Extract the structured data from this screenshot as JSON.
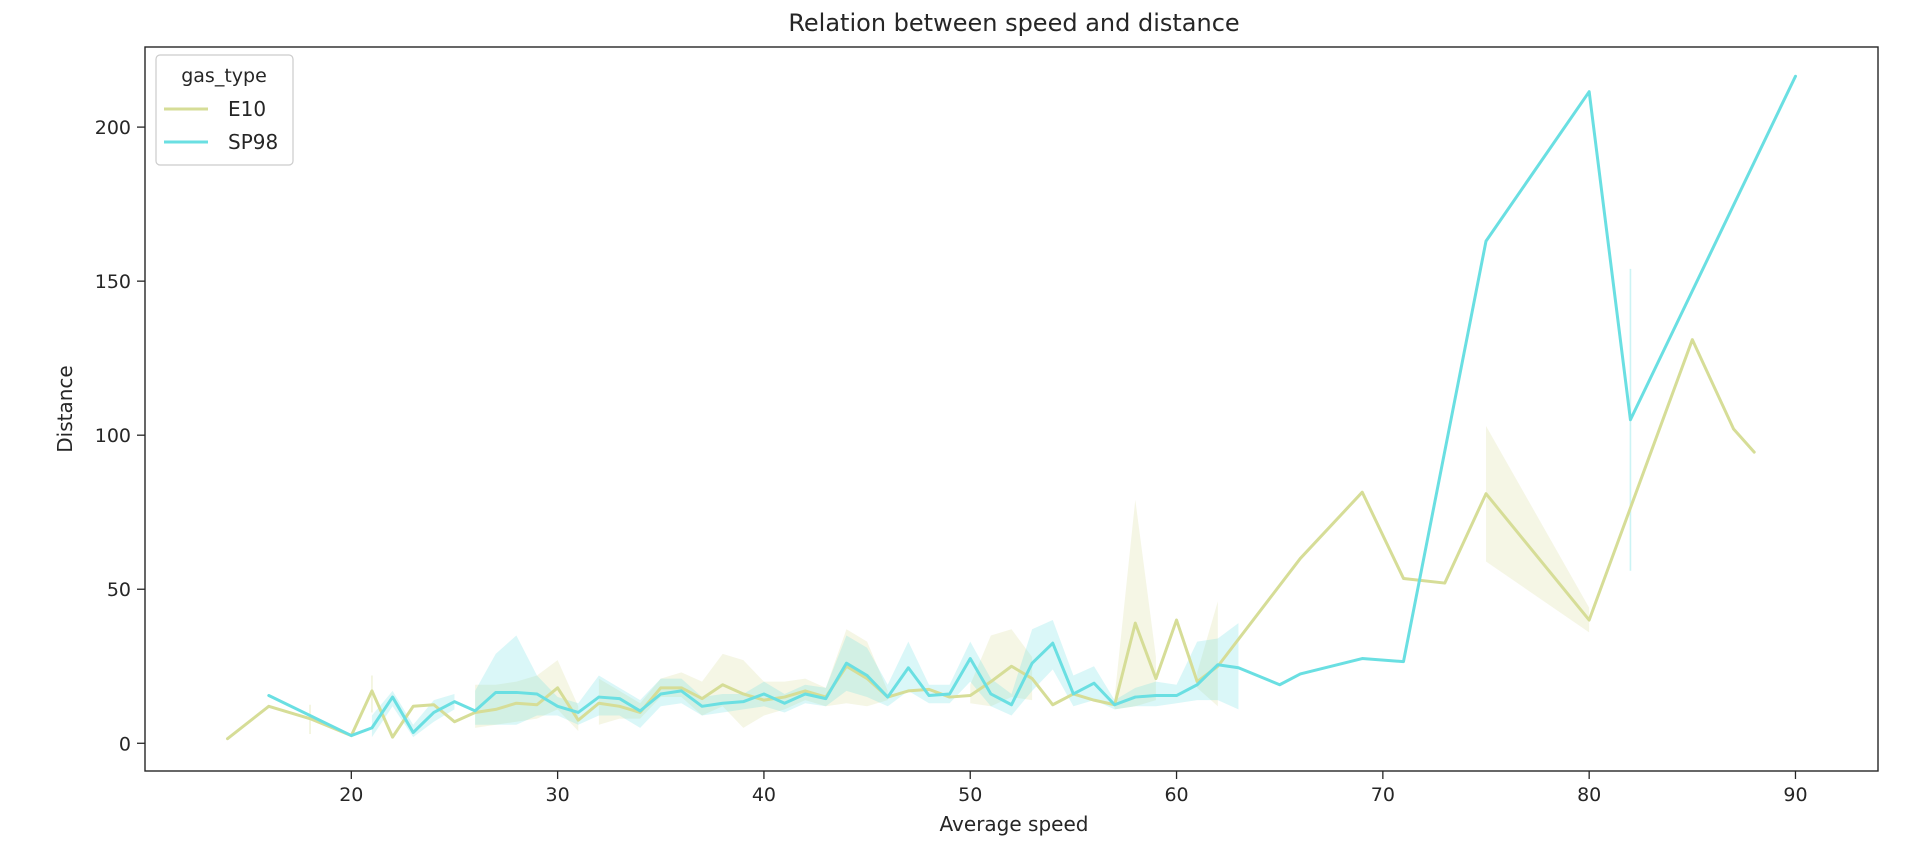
{
  "chart_data": {
    "type": "line",
    "title": "Relation between speed and distance",
    "xlabel": "Average speed",
    "ylabel": "Distance",
    "xlim": [
      10,
      94
    ],
    "ylim": [
      -9,
      226
    ],
    "xticks": [
      20,
      30,
      40,
      50,
      60,
      70,
      80,
      90
    ],
    "yticks": [
      0,
      50,
      100,
      150,
      200
    ],
    "grid": false,
    "legend": {
      "title": "gas_type",
      "placement": "top-left"
    },
    "series": [
      {
        "name": "E10",
        "color": "#d6dd97",
        "points": [
          [
            14,
            1.5
          ],
          [
            16,
            12
          ],
          [
            18,
            8
          ],
          [
            20,
            2.5
          ],
          [
            21,
            17
          ],
          [
            22,
            2
          ],
          [
            23,
            12
          ],
          [
            24,
            12.5
          ],
          [
            25,
            7
          ],
          [
            26,
            10
          ],
          [
            27,
            11
          ],
          [
            28,
            13
          ],
          [
            29,
            12.5
          ],
          [
            30,
            18
          ],
          [
            31,
            7.5
          ],
          [
            32,
            13
          ],
          [
            33,
            12
          ],
          [
            34,
            10
          ],
          [
            35,
            18
          ],
          [
            36,
            18
          ],
          [
            37,
            14.5
          ],
          [
            38,
            19
          ],
          [
            39,
            16
          ],
          [
            40,
            14
          ],
          [
            41,
            15
          ],
          [
            42,
            17
          ],
          [
            43,
            15
          ],
          [
            44,
            25
          ],
          [
            45,
            21
          ],
          [
            46,
            15
          ],
          [
            47,
            17
          ],
          [
            48,
            17.5
          ],
          [
            49,
            15
          ],
          [
            50,
            15.5
          ],
          [
            51,
            20
          ],
          [
            52,
            25
          ],
          [
            53,
            21
          ],
          [
            54,
            12.5
          ],
          [
            55,
            16
          ],
          [
            56,
            14
          ],
          [
            57,
            12.5
          ],
          [
            58,
            39
          ],
          [
            59,
            21
          ],
          [
            60,
            40
          ],
          [
            61,
            20
          ],
          [
            62,
            25
          ],
          [
            66,
            60
          ],
          [
            69,
            81.5
          ],
          [
            71,
            53.5
          ],
          [
            73,
            52
          ],
          [
            75,
            81
          ],
          [
            80,
            40
          ],
          [
            85,
            131
          ],
          [
            87,
            102
          ],
          [
            88,
            94.5
          ]
        ],
        "ci": [
          [
            [
              18,
              3
            ],
            [
              18,
              12.5
            ]
          ],
          [
            [
              21,
              10
            ],
            [
              21,
              22
            ]
          ],
          [
            [
              26,
              5
            ],
            [
              26,
              19
            ],
            [
              27,
              6
            ],
            [
              27,
              19
            ],
            [
              28,
              7
            ],
            [
              28,
              20
            ],
            [
              29,
              8
            ],
            [
              29,
              22
            ],
            [
              30,
              11
            ],
            [
              30,
              27
            ],
            [
              31,
              4
            ],
            [
              31,
              12
            ]
          ],
          [
            [
              32,
              6
            ],
            [
              32,
              21
            ],
            [
              33,
              8
            ],
            [
              33,
              17
            ],
            [
              34,
              8
            ],
            [
              34,
              13
            ],
            [
              35,
              15
            ],
            [
              35,
              21
            ],
            [
              36,
              15
            ],
            [
              36,
              23
            ],
            [
              37,
              9
            ],
            [
              37,
              20
            ],
            [
              38,
              12
            ],
            [
              38,
              29
            ],
            [
              39,
              5
            ],
            [
              39,
              27
            ],
            [
              40,
              9
            ],
            [
              40,
              20
            ],
            [
              41,
              11
            ],
            [
              41,
              20
            ],
            [
              42,
              14
            ],
            [
              42,
              21
            ],
            [
              43,
              12
            ],
            [
              43,
              18
            ],
            [
              44,
              13
            ],
            [
              44,
              37
            ],
            [
              45,
              12
            ],
            [
              45,
              33
            ],
            [
              46,
              14
            ],
            [
              46,
              17
            ]
          ],
          [
            [
              50,
              13
            ],
            [
              50,
              19
            ],
            [
              51,
              12
            ],
            [
              51,
              35
            ],
            [
              52,
              15
            ],
            [
              52,
              37
            ],
            [
              53,
              14
            ],
            [
              53,
              28
            ]
          ],
          [
            [
              57,
              11
            ],
            [
              57,
              15
            ],
            [
              58,
              12
            ],
            [
              58,
              79
            ],
            [
              59,
              14
            ],
            [
              59,
              28
            ]
          ],
          [
            [
              61,
              18
            ],
            [
              61,
              23
            ],
            [
              62,
              12
            ],
            [
              62,
              46
            ]
          ],
          [
            [
              75,
              59
            ],
            [
              75,
              103
            ],
            [
              80,
              36
            ],
            [
              80,
              44
            ]
          ]
        ]
      },
      {
        "name": "SP98",
        "color": "#6adfe2",
        "points": [
          [
            16,
            15.5
          ],
          [
            20,
            2.5
          ],
          [
            21,
            5
          ],
          [
            22,
            15
          ],
          [
            23,
            3.5
          ],
          [
            24,
            10
          ],
          [
            25,
            13.5
          ],
          [
            26,
            10.5
          ],
          [
            27,
            16.5
          ],
          [
            28,
            16.5
          ],
          [
            29,
            16
          ],
          [
            30,
            12
          ],
          [
            31,
            10
          ],
          [
            32,
            15
          ],
          [
            33,
            14.5
          ],
          [
            34,
            10.5
          ],
          [
            35,
            16
          ],
          [
            36,
            17
          ],
          [
            37,
            12
          ],
          [
            38,
            13
          ],
          [
            39,
            13.5
          ],
          [
            40,
            16
          ],
          [
            41,
            13
          ],
          [
            42,
            16
          ],
          [
            43,
            14.5
          ],
          [
            44,
            26
          ],
          [
            45,
            22
          ],
          [
            46,
            15
          ],
          [
            47,
            24.5
          ],
          [
            48,
            15.5
          ],
          [
            49,
            16
          ],
          [
            50,
            27.5
          ],
          [
            51,
            16
          ],
          [
            52,
            12.5
          ],
          [
            53,
            26
          ],
          [
            54,
            32.5
          ],
          [
            55,
            16
          ],
          [
            56,
            19.5
          ],
          [
            57,
            12.5
          ],
          [
            58,
            15
          ],
          [
            59,
            15.5
          ],
          [
            60,
            15.5
          ],
          [
            61,
            19
          ],
          [
            62,
            25.5
          ],
          [
            63,
            24.5
          ],
          [
            65,
            19
          ],
          [
            66,
            22.5
          ],
          [
            69,
            27.5
          ],
          [
            71,
            26.5
          ],
          [
            75,
            163
          ],
          [
            80,
            211.5
          ],
          [
            82,
            105
          ],
          [
            90,
            216.5
          ]
        ],
        "ci": [
          [
            [
              21,
              2
            ],
            [
              21,
              9
            ],
            [
              22,
              12
            ],
            [
              22,
              17
            ],
            [
              23,
              2
            ],
            [
              23,
              6
            ],
            [
              24,
              7
            ],
            [
              24,
              14
            ],
            [
              25,
              11
            ],
            [
              25,
              16
            ]
          ],
          [
            [
              26,
              6
            ],
            [
              26,
              17
            ],
            [
              27,
              6
            ],
            [
              27,
              29
            ],
            [
              28,
              6
            ],
            [
              28,
              35
            ],
            [
              29,
              9
            ],
            [
              29,
              22
            ],
            [
              30,
              9
            ],
            [
              30,
              15
            ],
            [
              31,
              6
            ],
            [
              31,
              13
            ],
            [
              32,
              9
            ],
            [
              32,
              22
            ],
            [
              33,
              9
            ],
            [
              33,
              18
            ],
            [
              34,
              5
            ],
            [
              34,
              14
            ],
            [
              35,
              12
            ],
            [
              35,
              21
            ],
            [
              36,
              13
            ],
            [
              36,
              21
            ],
            [
              37,
              9
            ],
            [
              37,
              15
            ],
            [
              38,
              10
            ],
            [
              38,
              16
            ],
            [
              39,
              11
            ],
            [
              39,
              16
            ],
            [
              40,
              12
            ],
            [
              40,
              20
            ],
            [
              41,
              10
            ],
            [
              41,
              16
            ],
            [
              42,
              13
            ],
            [
              42,
              19
            ],
            [
              43,
              12
            ],
            [
              43,
              18
            ],
            [
              44,
              17
            ],
            [
              44,
              35
            ],
            [
              45,
              15
            ],
            [
              45,
              31
            ],
            [
              46,
              12
            ],
            [
              46,
              19
            ],
            [
              47,
              17
            ],
            [
              47,
              33
            ],
            [
              48,
              13
            ],
            [
              48,
              19
            ],
            [
              49,
              13
            ],
            [
              49,
              19
            ],
            [
              50,
              20
            ],
            [
              50,
              33
            ],
            [
              51,
              12
            ],
            [
              51,
              21
            ],
            [
              52,
              9
            ],
            [
              52,
              16
            ],
            [
              53,
              17
            ],
            [
              53,
              37
            ],
            [
              54,
              24
            ],
            [
              54,
              40
            ],
            [
              55,
              12
            ],
            [
              55,
              22
            ],
            [
              56,
              14
            ],
            [
              56,
              25
            ],
            [
              57,
              11
            ],
            [
              57,
              14
            ],
            [
              58,
              12
            ],
            [
              58,
              18
            ],
            [
              59,
              12
            ],
            [
              59,
              20
            ],
            [
              60,
              13
            ],
            [
              60,
              19
            ],
            [
              61,
              14
            ],
            [
              61,
              33
            ],
            [
              62,
              14
            ],
            [
              62,
              34
            ],
            [
              63,
              11
            ],
            [
              63,
              39
            ]
          ],
          [
            [
              82,
              56
            ],
            [
              82,
              154
            ]
          ]
        ]
      }
    ]
  }
}
